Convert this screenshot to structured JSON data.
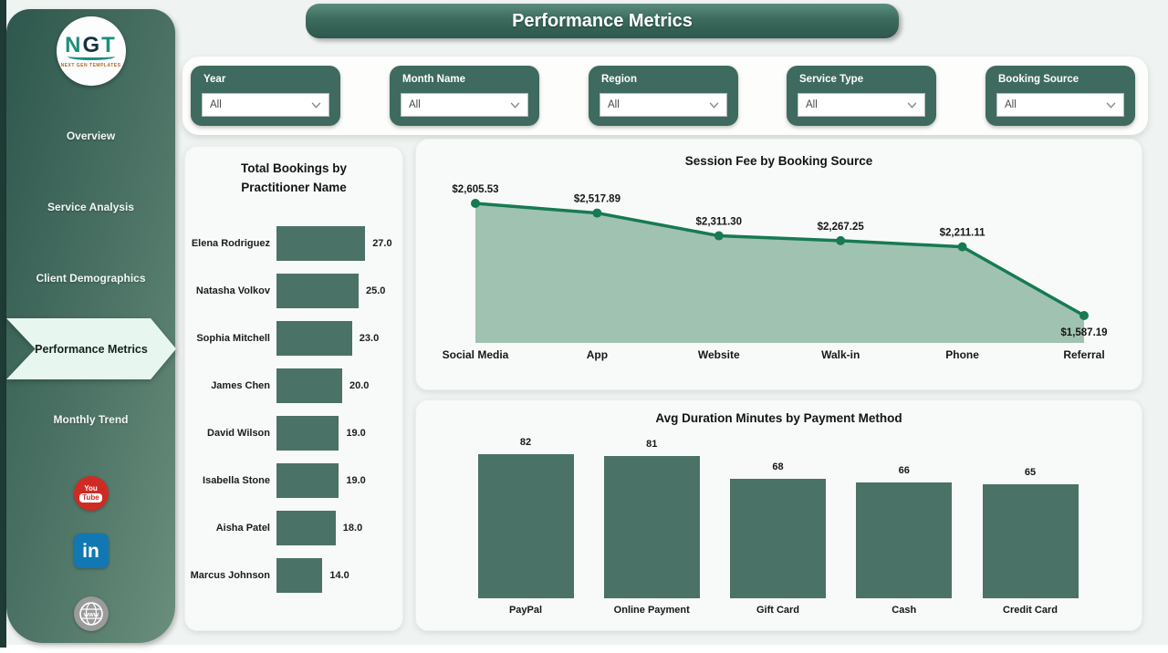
{
  "page_title": "Performance Metrics",
  "colors": {
    "bar_fill": "#4b7267",
    "line": "#177a52",
    "area_fill": "#a0c2b1",
    "filter_box": "#3e6a5f",
    "sidebar_dark": "#2e574d",
    "sidebar_light": "#6b8e7c",
    "active_mint": "#e7f7f0",
    "label_dark": "#1c1c1c"
  },
  "sidebar": {
    "logo": {
      "text_n": "N",
      "text_g": "G",
      "text_t": "T",
      "caption": "NEXT GEN TEMPLATES"
    },
    "items": [
      {
        "label": "Overview",
        "active": false
      },
      {
        "label": "Service Analysis",
        "active": false
      },
      {
        "label": "Client Demographics",
        "active": false
      },
      {
        "label": "Performance Metrics",
        "active": true
      },
      {
        "label": "Monthly Trend",
        "active": false
      }
    ],
    "social": {
      "youtube_top": "You",
      "youtube_bottom": "Tube",
      "linkedin": "in",
      "website": "www"
    }
  },
  "header": {
    "title": "Performance Metrics"
  },
  "filters": [
    {
      "label": "Year",
      "value": "All"
    },
    {
      "label": "Month Name",
      "value": "All"
    },
    {
      "label": "Region",
      "value": "All"
    },
    {
      "label": "Service Type",
      "value": "All"
    },
    {
      "label": "Booking Source",
      "value": "All"
    }
  ],
  "chart_data": [
    {
      "type": "bar",
      "orientation": "horizontal",
      "title": "Total Bookings by Practitioner Name",
      "categories": [
        "Elena Rodriguez",
        "Natasha Volkov",
        "Sophia Mitchell",
        "James Chen",
        "David Wilson",
        "Isabella Stone",
        "Aisha Patel",
        "Marcus Johnson"
      ],
      "values": [
        27,
        25,
        23,
        20,
        19,
        19,
        18,
        14
      ],
      "value_labels": [
        "27.0",
        "25.0",
        "23.0",
        "20.0",
        "19.0",
        "19.0",
        "18.0",
        "14.0"
      ],
      "xlabel": "",
      "ylabel": "",
      "xlim": [
        0,
        30
      ],
      "grid": false,
      "legend": "none"
    },
    {
      "type": "area",
      "title": "Session Fee by Booking Source",
      "categories": [
        "Social Media",
        "App",
        "Website",
        "Walk-in",
        "Phone",
        "Referral"
      ],
      "values": [
        2605.53,
        2517.89,
        2311.3,
        2267.25,
        2211.11,
        1587.19
      ],
      "value_labels": [
        "$2,605.53",
        "$2,517.89",
        "$2,311.30",
        "$2,267.25",
        "$2,211.11",
        "$1,587.19"
      ],
      "xlabel": "",
      "ylabel": "",
      "grid": false,
      "legend": "none",
      "markers": true
    },
    {
      "type": "bar",
      "orientation": "vertical",
      "title": "Avg Duration Minutes by Payment Method",
      "categories": [
        "PayPal",
        "Online Payment",
        "Gift Card",
        "Cash",
        "Credit Card"
      ],
      "values": [
        82,
        81,
        68,
        66,
        65
      ],
      "value_labels": [
        "82",
        "81",
        "68",
        "66",
        "65"
      ],
      "xlabel": "",
      "ylabel": "",
      "ylim": [
        0,
        90
      ],
      "grid": false,
      "legend": "none"
    }
  ]
}
